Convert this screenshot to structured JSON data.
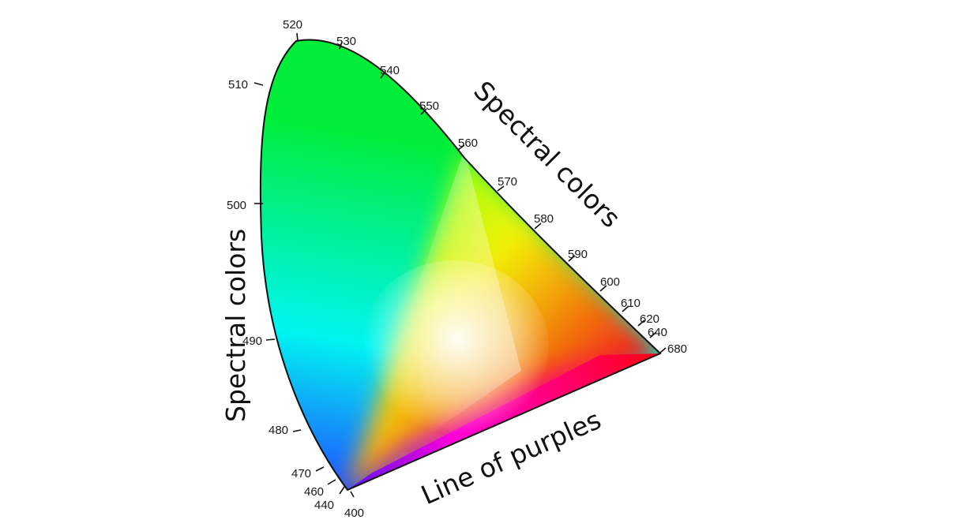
{
  "diagram": {
    "labels": {
      "left_edge": "Spectral colors",
      "right_edge": "Spectral colors",
      "bottom_edge": "Line of purples"
    },
    "wavelength_ticks": [
      {
        "nm": "400"
      },
      {
        "nm": "440"
      },
      {
        "nm": "460"
      },
      {
        "nm": "470"
      },
      {
        "nm": "480"
      },
      {
        "nm": "490"
      },
      {
        "nm": "500"
      },
      {
        "nm": "510"
      },
      {
        "nm": "520"
      },
      {
        "nm": "530"
      },
      {
        "nm": "540"
      },
      {
        "nm": "550"
      },
      {
        "nm": "560"
      },
      {
        "nm": "570"
      },
      {
        "nm": "580"
      },
      {
        "nm": "590"
      },
      {
        "nm": "600"
      },
      {
        "nm": "610"
      },
      {
        "nm": "620"
      },
      {
        "nm": "640"
      },
      {
        "nm": "680"
      }
    ],
    "colors": {
      "outline": "#111111",
      "green": "#00ee3a",
      "cyan": "#00f5f0",
      "blue": "#1e5cff",
      "violet": "#5a14f0",
      "magenta": "#ff00d8",
      "red": "#ff0010",
      "orange": "#ff9000",
      "yellow": "#fff000",
      "white": "#ffffff"
    }
  }
}
